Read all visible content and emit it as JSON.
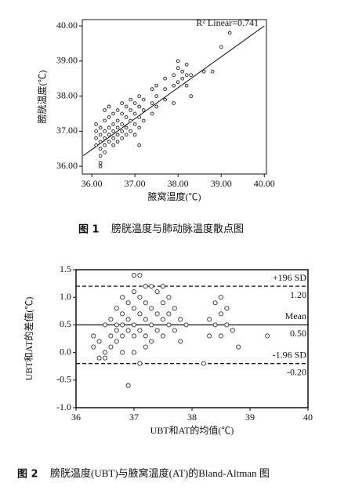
{
  "chart_data": [
    {
      "type": "scatter",
      "figure_label": "图 1",
      "title": "膀胱温度与肺动脉温度散点图",
      "xlabel": "腋窝温度(℃)",
      "ylabel": "膀胱温度(℃)",
      "annotation": "R² Linear=0.741",
      "xlim": [
        35.78,
        40.05
      ],
      "ylim": [
        35.78,
        40.18
      ],
      "xticks": [
        {
          "value": 36,
          "label": "36.00"
        },
        {
          "value": 37,
          "label": "37.00"
        },
        {
          "value": 38,
          "label": "38.00"
        },
        {
          "value": 39,
          "label": "39.00"
        },
        {
          "value": 40,
          "label": "40.00"
        }
      ],
      "yticks": [
        {
          "value": 36,
          "label": "36.00"
        },
        {
          "value": 37,
          "label": "37.00"
        },
        {
          "value": 38,
          "label": "38.00"
        },
        {
          "value": 39,
          "label": "39.00"
        },
        {
          "value": 40,
          "label": "40.00"
        }
      ],
      "fit_line": {
        "x": [
          35.8,
          40.0
        ],
        "y": [
          36.3,
          40.0
        ]
      },
      "color": "#222",
      "x": [
        36.1,
        36.1,
        36.1,
        36.1,
        36.2,
        36.2,
        36.2,
        36.2,
        36.2,
        36.2,
        36.2,
        36.3,
        36.3,
        36.3,
        36.3,
        36.3,
        36.3,
        36.4,
        36.4,
        36.4,
        36.4,
        36.4,
        36.5,
        36.5,
        36.5,
        36.5,
        36.5,
        36.6,
        36.6,
        36.6,
        36.6,
        36.6,
        36.7,
        36.7,
        36.7,
        36.7,
        36.7,
        36.8,
        36.8,
        36.8,
        36.8,
        36.9,
        36.9,
        36.9,
        36.9,
        37.0,
        37.0,
        37.0,
        37.0,
        37.1,
        37.1,
        37.1,
        37.1,
        37.1,
        37.2,
        37.2,
        37.2,
        37.4,
        37.4,
        37.4,
        37.5,
        37.5,
        37.5,
        37.7,
        37.7,
        37.7,
        37.9,
        37.9,
        37.9,
        38.0,
        38.0,
        38.0,
        38.1,
        38.1,
        38.2,
        38.2,
        38.2,
        38.3,
        38.3,
        38.6,
        38.8,
        39.0,
        39.2
      ],
      "y": [
        36.6,
        36.8,
        37.0,
        37.2,
        36.0,
        36.1,
        36.3,
        36.5,
        36.7,
        36.9,
        37.1,
        36.4,
        36.6,
        36.8,
        37.0,
        37.3,
        37.6,
        36.7,
        36.9,
        37.1,
        37.4,
        37.7,
        36.6,
        36.8,
        37.0,
        37.2,
        37.5,
        36.7,
        36.9,
        37.1,
        37.3,
        37.6,
        36.8,
        37.0,
        37.2,
        37.5,
        37.8,
        36.9,
        37.1,
        37.4,
        37.7,
        37.0,
        37.3,
        37.6,
        37.9,
        36.9,
        37.2,
        37.5,
        37.8,
        36.6,
        37.1,
        37.4,
        37.7,
        38.0,
        37.3,
        37.6,
        37.9,
        37.5,
        37.8,
        38.2,
        37.7,
        38.0,
        38.3,
        37.9,
        38.2,
        38.5,
        37.8,
        38.3,
        38.6,
        38.4,
        38.8,
        39.0,
        38.5,
        38.7,
        38.3,
        38.6,
        38.9,
        38.0,
        38.6,
        38.7,
        38.7,
        39.4,
        39.8
      ]
    },
    {
      "type": "scatter",
      "figure_label": "图 2",
      "title": "膀胱温度(UBT)与腋窝温度(AT)的Bland-Altman 图",
      "xlabel": "UBT和AT的均值(℃)",
      "ylabel": "UBT和AT的差值(℃)",
      "xlim": [
        36,
        40
      ],
      "ylim": [
        -1.0,
        1.5
      ],
      "xticks": [
        36,
        37,
        38,
        39,
        40
      ],
      "yticks": [
        {
          "value": -1.0,
          "label": "-1.0"
        },
        -0.5,
        {
          "value": 0,
          "label": "0.0"
        },
        0.5,
        {
          "value": 1.0,
          "label": "1.0"
        },
        1.5
      ],
      "reference_lines": [
        {
          "name": "+196 SD",
          "value": 1.2,
          "label": "1.20",
          "style": "dashed"
        },
        {
          "name": "Mean",
          "value": 0.5,
          "label": "0.50",
          "style": "solid"
        },
        {
          "name": "-1.96 SD",
          "value": -0.2,
          "label": "-0.20",
          "style": "dashed"
        }
      ],
      "color": "#333",
      "x": [
        36.3,
        36.3,
        36.4,
        36.4,
        36.5,
        36.5,
        36.5,
        36.6,
        36.6,
        36.6,
        36.7,
        36.7,
        36.7,
        36.7,
        36.8,
        36.8,
        36.8,
        36.8,
        36.8,
        36.9,
        36.9,
        36.9,
        36.9,
        37.0,
        37.0,
        37.0,
        37.0,
        37.0,
        37.0,
        37.1,
        37.1,
        37.1,
        37.1,
        37.1,
        37.2,
        37.2,
        37.2,
        37.2,
        37.2,
        37.3,
        37.3,
        37.3,
        37.3,
        37.4,
        37.4,
        37.4,
        37.5,
        37.5,
        37.5,
        37.5,
        37.6,
        37.6,
        37.6,
        37.7,
        37.7,
        37.8,
        37.8,
        37.9,
        38.2,
        38.3,
        38.3,
        38.4,
        38.4,
        38.5,
        38.5,
        38.5,
        38.6,
        38.6,
        38.7,
        38.8,
        39.3
      ],
      "y": [
        0.3,
        0.1,
        -0.1,
        0.2,
        0.5,
        -0.1,
        0.0,
        0.3,
        0.6,
        0.1,
        0.8,
        0.5,
        0.4,
        0.2,
        1.0,
        0.7,
        0.5,
        0.3,
        0.0,
        0.9,
        0.6,
        0.4,
        -0.6,
        1.4,
        1.1,
        0.8,
        0.5,
        0.3,
        0.0,
        1.4,
        1.0,
        0.7,
        0.4,
        -0.2,
        1.2,
        0.9,
        0.6,
        0.3,
        0.1,
        1.2,
        0.8,
        0.5,
        0.2,
        1.1,
        0.7,
        0.4,
        1.2,
        0.9,
        0.6,
        0.3,
        1.0,
        0.7,
        0.5,
        0.8,
        0.4,
        0.6,
        0.2,
        0.5,
        -0.2,
        0.6,
        0.3,
        0.9,
        0.5,
        1.0,
        0.7,
        0.3,
        0.8,
        0.5,
        0.4,
        0.1,
        0.3
      ]
    }
  ]
}
